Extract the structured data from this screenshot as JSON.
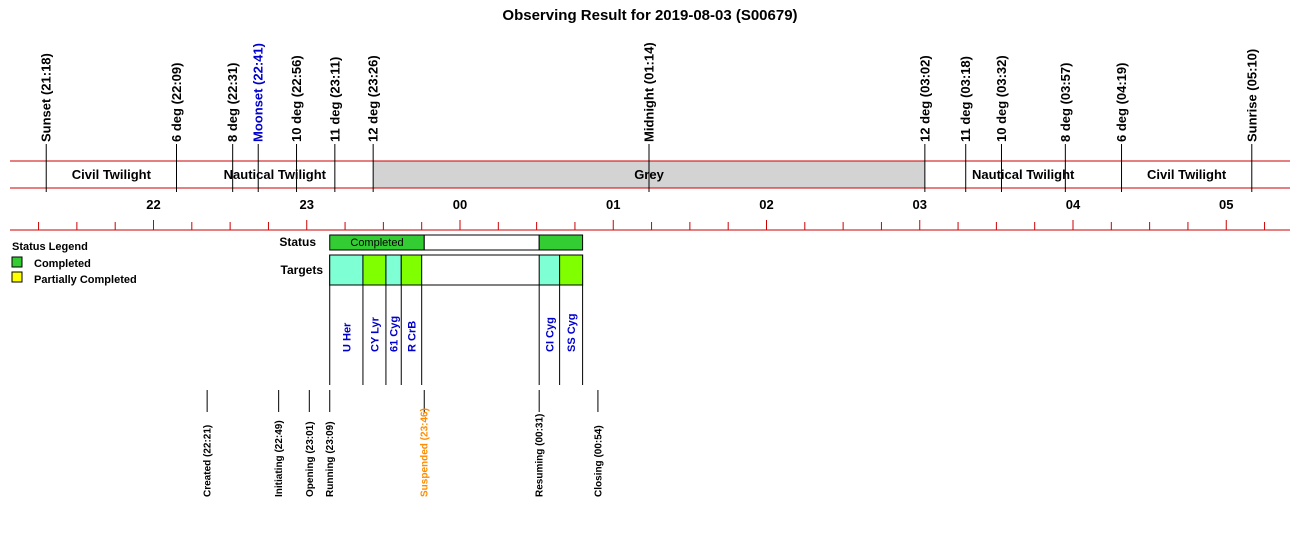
{
  "chart_data": {
    "type": "timeline",
    "title": "Observing Result for 2019-08-03 (S00679)",
    "hour_ticks": [
      "22",
      "23",
      "00",
      "01",
      "02",
      "03",
      "04",
      "05"
    ],
    "twilight_events": [
      {
        "label": "Sunset (21:18)",
        "time": "21:18",
        "color": "#000000"
      },
      {
        "label": "6 deg (22:09)",
        "time": "22:09",
        "color": "#000000"
      },
      {
        "label": "8 deg (22:31)",
        "time": "22:31",
        "color": "#000000"
      },
      {
        "label": "Moonset (22:41)",
        "time": "22:41",
        "color": "#0000cc"
      },
      {
        "label": "10 deg (22:56)",
        "time": "22:56",
        "color": "#000000"
      },
      {
        "label": "11 deg (23:11)",
        "time": "23:11",
        "color": "#000000"
      },
      {
        "label": "12 deg (23:26)",
        "time": "23:26",
        "color": "#000000"
      },
      {
        "label": "Midnight (01:14)",
        "time": "01:14",
        "color": "#000000"
      },
      {
        "label": "12 deg (03:02)",
        "time": "03:02",
        "color": "#000000"
      },
      {
        "label": "11 deg (03:18)",
        "time": "03:18",
        "color": "#000000"
      },
      {
        "label": "10 deg (03:32)",
        "time": "03:32",
        "color": "#000000"
      },
      {
        "label": "8 deg (03:57)",
        "time": "03:57",
        "color": "#000000"
      },
      {
        "label": "6 deg (04:19)",
        "time": "04:19",
        "color": "#000000"
      },
      {
        "label": "Sunrise (05:10)",
        "time": "05:10",
        "color": "#000000"
      }
    ],
    "sky_bands": [
      {
        "label": "Civil Twilight",
        "start": "21:18",
        "end": "22:09",
        "color": "#ffffff"
      },
      {
        "label": "Nautical Twilight",
        "start": "22:09",
        "end": "23:26",
        "color": "#ffffff"
      },
      {
        "label": "Grey",
        "start": "23:26",
        "end": "03:02",
        "color": "#d3d3d3"
      },
      {
        "label": "Nautical Twilight",
        "start": "03:02",
        "end": "04:19",
        "color": "#ffffff"
      },
      {
        "label": "Civil Twilight",
        "start": "04:19",
        "end": "05:10",
        "color": "#ffffff"
      }
    ],
    "status_label": "Status",
    "status_segments": [
      {
        "label": "Completed",
        "start": "23:09",
        "end": "23:46",
        "status": "completed",
        "color": "#33cc33"
      },
      {
        "label": "",
        "start": "23:46",
        "end": "00:31",
        "status": "suspended",
        "color": "#ffffff"
      },
      {
        "label": "",
        "start": "00:31",
        "end": "00:48",
        "status": "completed",
        "color": "#33cc33"
      }
    ],
    "targets_label": "Targets",
    "targets": [
      {
        "name": "U Her",
        "start": "23:09",
        "end": "23:22",
        "color": "#7fffd4"
      },
      {
        "name": "CY Lyr",
        "start": "23:22",
        "end": "23:31",
        "color": "#7fff00"
      },
      {
        "name": "61 Cyg",
        "start": "23:31",
        "end": "23:37",
        "color": "#7fffd4"
      },
      {
        "name": "R CrB",
        "start": "23:37",
        "end": "23:45",
        "color": "#7fff00"
      },
      {
        "name": "CI Cyg",
        "start": "00:31",
        "end": "00:39",
        "color": "#7fffd4"
      },
      {
        "name": "SS Cyg",
        "start": "00:39",
        "end": "00:48",
        "color": "#7fff00"
      }
    ],
    "observation_events": [
      {
        "label": "Created (22:21)",
        "time": "22:21",
        "color": "#000000"
      },
      {
        "label": "Initiating (22:49)",
        "time": "22:49",
        "color": "#000000"
      },
      {
        "label": "Opening (23:01)",
        "time": "23:01",
        "color": "#000000"
      },
      {
        "label": "Running (23:09)",
        "time": "23:09",
        "color": "#000000"
      },
      {
        "label": "Suspended (23:46)",
        "time": "23:46",
        "color": "#ff8c00"
      },
      {
        "label": "Resuming (00:31)",
        "time": "00:31",
        "color": "#000000"
      },
      {
        "label": "Closing (00:54)",
        "time": "00:54",
        "color": "#000000"
      }
    ],
    "legend": {
      "title": "Status Legend",
      "placement": "left",
      "items": [
        {
          "label": "Completed",
          "color": "#33cc33"
        },
        {
          "label": "Partially Completed",
          "color": "#ffff00"
        }
      ]
    },
    "grid": false
  }
}
